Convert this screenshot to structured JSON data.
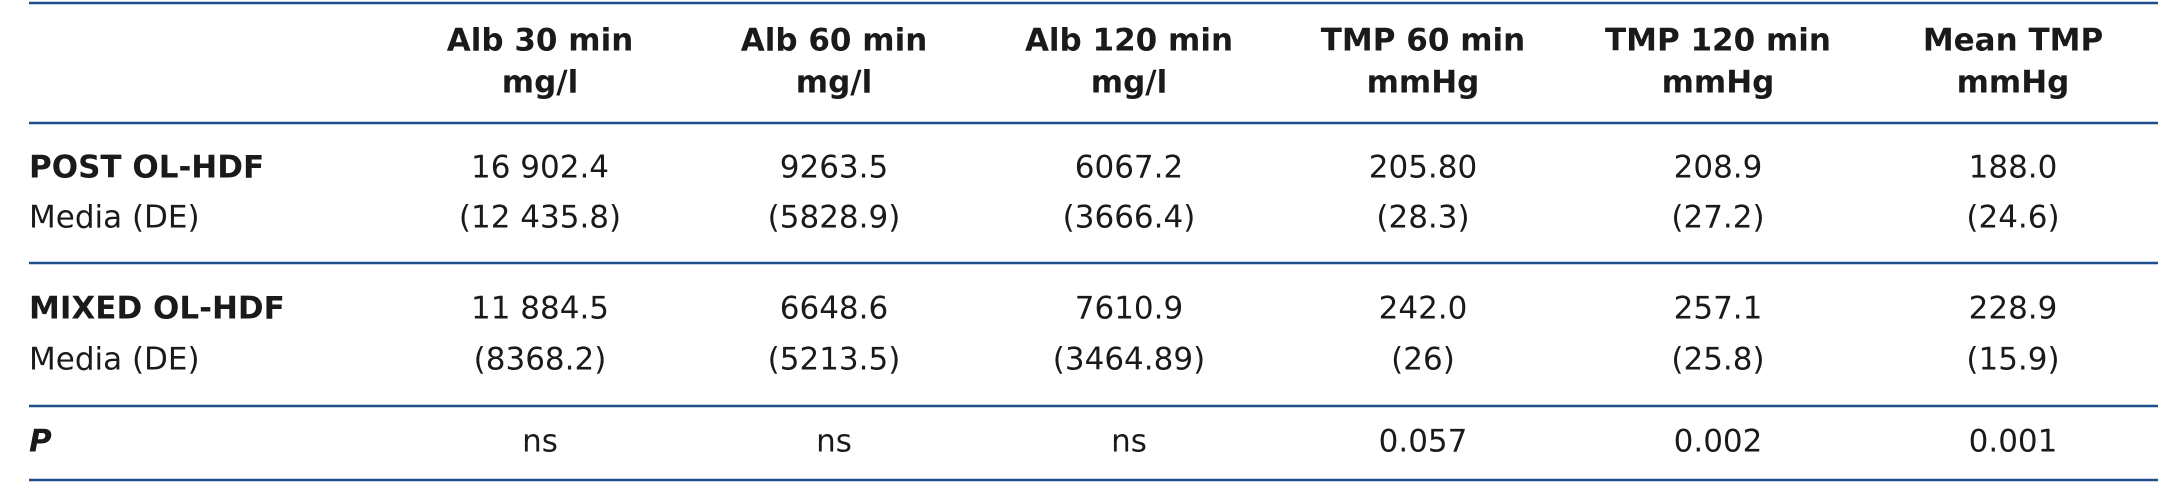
{
  "table": {
    "columns": [
      {
        "title": "Alb 30 min",
        "unit": "mg/l"
      },
      {
        "title": "Alb 60 min",
        "unit": "mg/l"
      },
      {
        "title": "Alb 120 min",
        "unit": "mg/l"
      },
      {
        "title": "TMP 60 min",
        "unit": "mmHg"
      },
      {
        "title": "TMP 120 min",
        "unit": "mmHg"
      },
      {
        "title": "Mean TMP",
        "unit": "mmHg"
      }
    ],
    "groups": [
      {
        "label": "POST OL-HDF",
        "sublabel": "Media (DE)",
        "means": [
          "16 902.4",
          "9263.5",
          "6067.2",
          "205.80",
          "208.9",
          "188.0"
        ],
        "sds": [
          "(12 435.8)",
          "(5828.9)",
          "(3666.4)",
          "(28.3)",
          "(27.2)",
          "(24.6)"
        ]
      },
      {
        "label": "MIXED OL-HDF",
        "sublabel": "Media (DE)",
        "means": [
          "11 884.5",
          "6648.6",
          "7610.9",
          "242.0",
          "257.1",
          "228.9"
        ],
        "sds": [
          "(8368.2)",
          "(5213.5)",
          "(3464.89)",
          "(26)",
          "(25.8)",
          "(15.9)"
        ]
      }
    ],
    "p_row": {
      "label": "P",
      "values": [
        "ns",
        "ns",
        "ns",
        "0.057",
        "0.002",
        "0.001"
      ]
    }
  }
}
